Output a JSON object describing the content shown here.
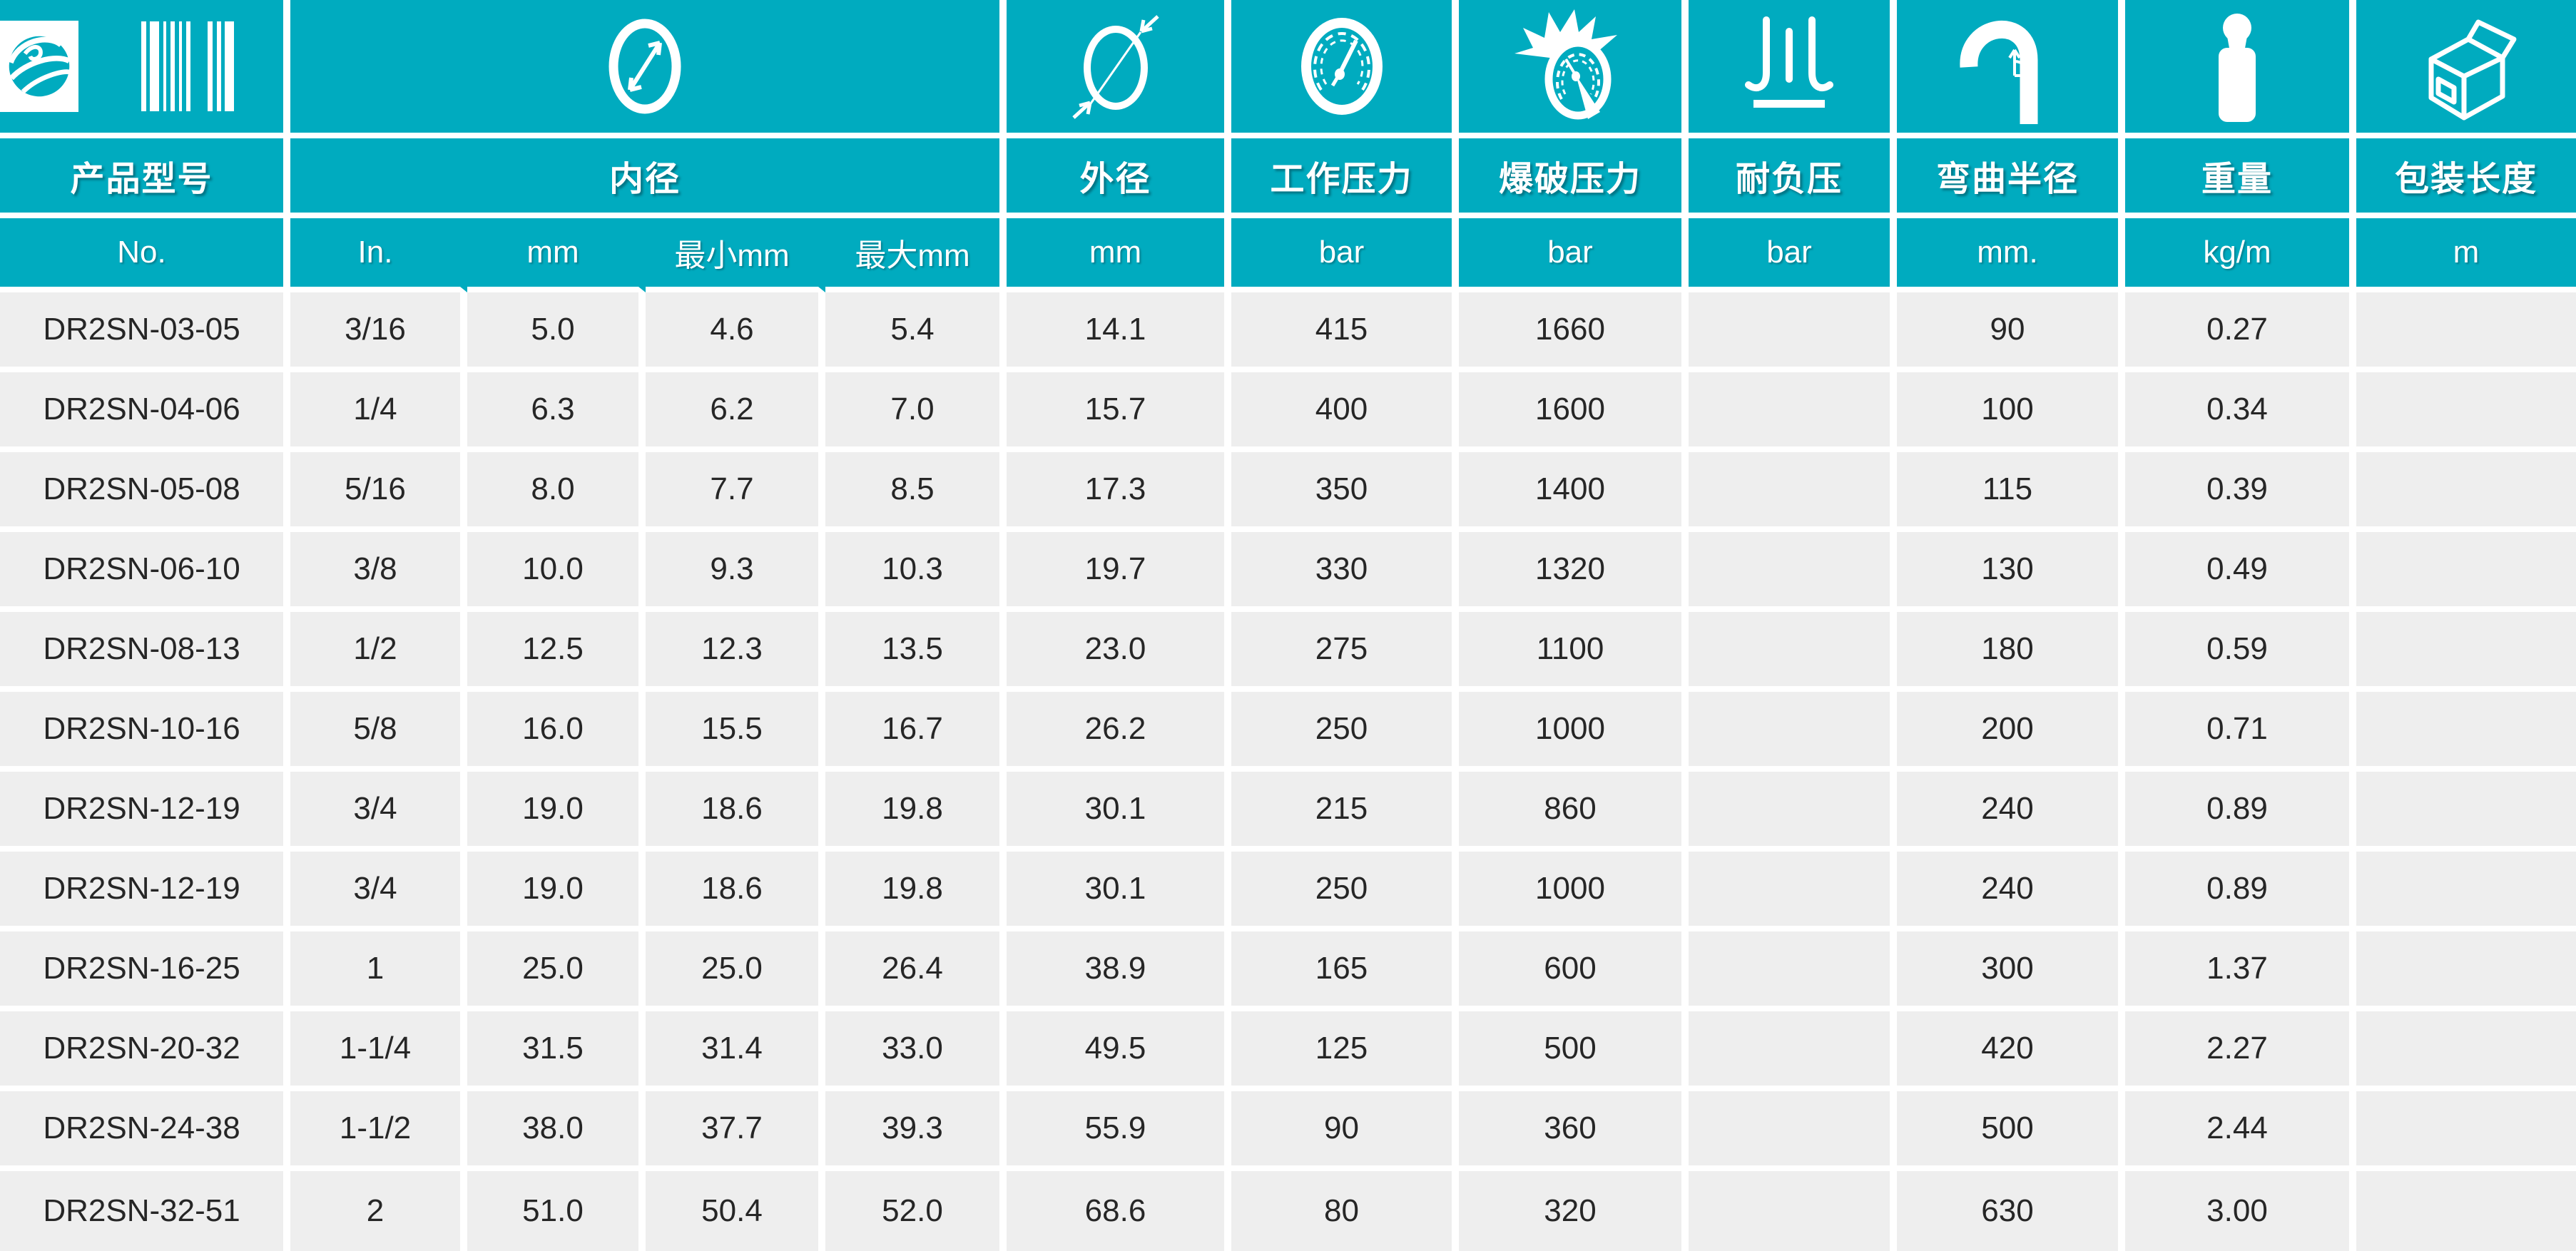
{
  "theme": {
    "accent_teal": "#00ABBF",
    "cell_gray": "#EEEEEE",
    "gutter_white": "#FFFFFF",
    "header_text": "#FFFFFF",
    "data_text": "#262626"
  },
  "header": {
    "product_label": "产品型号",
    "icons": [
      {
        "name": "brand-barcode-icon"
      },
      {
        "name": "inner-diameter-icon"
      },
      {
        "name": "outer-diameter-icon"
      },
      {
        "name": "working-pressure-gauge-icon"
      },
      {
        "name": "burst-pressure-gauge-icon"
      },
      {
        "name": "vacuum-resistance-icon"
      },
      {
        "name": "bend-radius-icon"
      },
      {
        "name": "weight-icon"
      },
      {
        "name": "package-length-icon"
      }
    ],
    "groups": [
      {
        "label": "内径",
        "span": 4
      },
      {
        "label": "外径",
        "span": 1
      },
      {
        "label": "工作压力",
        "span": 1
      },
      {
        "label": "爆破压力",
        "span": 1
      },
      {
        "label": "耐负压",
        "span": 1
      },
      {
        "label": "弯曲半径",
        "span": 1
      },
      {
        "label": "重量",
        "span": 1
      },
      {
        "label": "包装长度",
        "span": 1
      }
    ],
    "units": [
      "No.",
      "In.",
      "mm",
      "最小mm",
      "最大mm",
      "mm",
      "bar",
      "bar",
      "bar",
      "mm.",
      "kg/m",
      "m"
    ]
  },
  "rows": [
    [
      "DR2SN-03-05",
      "3/16",
      "5.0",
      "4.6",
      "5.4",
      "14.1",
      "415",
      "1660",
      "",
      "90",
      "0.27",
      ""
    ],
    [
      "DR2SN-04-06",
      "1/4",
      "6.3",
      "6.2",
      "7.0",
      "15.7",
      "400",
      "1600",
      "",
      "100",
      "0.34",
      ""
    ],
    [
      "DR2SN-05-08",
      "5/16",
      "8.0",
      "7.7",
      "8.5",
      "17.3",
      "350",
      "1400",
      "",
      "115",
      "0.39",
      ""
    ],
    [
      "DR2SN-06-10",
      "3/8",
      "10.0",
      "9.3",
      "10.3",
      "19.7",
      "330",
      "1320",
      "",
      "130",
      "0.49",
      ""
    ],
    [
      "DR2SN-08-13",
      "1/2",
      "12.5",
      "12.3",
      "13.5",
      "23.0",
      "275",
      "1100",
      "",
      "180",
      "0.59",
      ""
    ],
    [
      "DR2SN-10-16",
      "5/8",
      "16.0",
      "15.5",
      "16.7",
      "26.2",
      "250",
      "1000",
      "",
      "200",
      "0.71",
      ""
    ],
    [
      "DR2SN-12-19",
      "3/4",
      "19.0",
      "18.6",
      "19.8",
      "30.1",
      "215",
      "860",
      "",
      "240",
      "0.89",
      ""
    ],
    [
      "DR2SN-12-19",
      "3/4",
      "19.0",
      "18.6",
      "19.8",
      "30.1",
      "250",
      "1000",
      "",
      "240",
      "0.89",
      ""
    ],
    [
      "DR2SN-16-25",
      "1",
      "25.0",
      "25.0",
      "26.4",
      "38.9",
      "165",
      "600",
      "",
      "300",
      "1.37",
      ""
    ],
    [
      "DR2SN-20-32",
      "1-1/4",
      "31.5",
      "31.4",
      "33.0",
      "49.5",
      "125",
      "500",
      "",
      "420",
      "2.27",
      ""
    ],
    [
      "DR2SN-24-38",
      "1-1/2",
      "38.0",
      "37.7",
      "39.3",
      "55.9",
      "90",
      "360",
      "",
      "500",
      "2.44",
      ""
    ],
    [
      "DR2SN-32-51",
      "2",
      "51.0",
      "50.4",
      "52.0",
      "68.6",
      "80",
      "320",
      "",
      "630",
      "3.00",
      ""
    ]
  ]
}
